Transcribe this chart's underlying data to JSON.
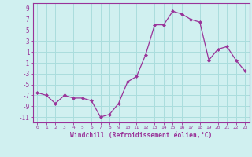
{
  "x": [
    0,
    1,
    2,
    3,
    4,
    5,
    6,
    7,
    8,
    9,
    10,
    11,
    12,
    13,
    14,
    15,
    16,
    17,
    18,
    19,
    20,
    21,
    22,
    23
  ],
  "y": [
    -6.5,
    -7.0,
    -8.5,
    -7.0,
    -7.5,
    -7.5,
    -8.0,
    -11.0,
    -10.5,
    -8.5,
    -4.5,
    -3.5,
    0.5,
    6.0,
    6.0,
    8.5,
    8.0,
    7.0,
    6.5,
    -0.5,
    1.5,
    2.0,
    -0.5,
    -2.5
  ],
  "line_color": "#993399",
  "marker": "D",
  "marker_size": 2,
  "bg_color": "#d0f0f0",
  "grid_color": "#aadddd",
  "xlabel": "Windchill (Refroidissement éolien,°C)",
  "xlabel_color": "#993399",
  "tick_color": "#993399",
  "ylabel_ticks": [
    -11,
    -9,
    -7,
    -5,
    -3,
    -1,
    1,
    3,
    5,
    7,
    9
  ],
  "xlim": [
    -0.5,
    23.5
  ],
  "ylim": [
    -12,
    10
  ],
  "axis_color": "#993399",
  "font_family": "monospace"
}
